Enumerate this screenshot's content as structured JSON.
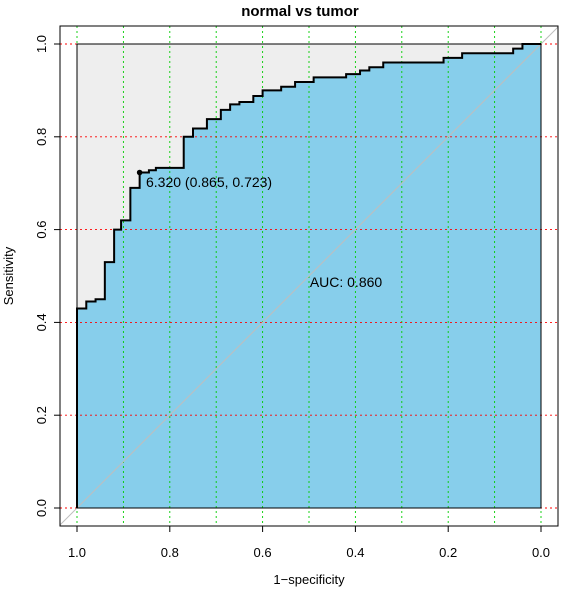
{
  "chart_data": {
    "type": "line",
    "title": "normal vs tumor",
    "xlabel": "1−specificity",
    "ylabel": "Sensitivity",
    "xlim": [
      1.0,
      0.0
    ],
    "ylim": [
      0.0,
      1.0
    ],
    "x_reversed": true,
    "xticks": [
      "1.0",
      "0.8",
      "0.6",
      "0.4",
      "0.2",
      "0.0"
    ],
    "yticks": [
      "0.0",
      "0.2",
      "0.4",
      "0.6",
      "0.8",
      "1.0"
    ],
    "grid": true,
    "grid_x_color": "#00cc00",
    "grid_y_color": "#ff0000",
    "auc_fill_color": "#87ceeb",
    "outer_fill_color": "#eeeeee",
    "diagonal_color": "#bebebe",
    "auc_label": "AUC: 0.860",
    "threshold_label": "6.320 (0.865, 0.723)",
    "threshold_point": {
      "specificity": 0.865,
      "sensitivity": 0.723
    },
    "series": [
      {
        "x": [
          1.0,
          1.0,
          0.98,
          0.98,
          0.96,
          0.96,
          0.94,
          0.94,
          0.92,
          0.92,
          0.905,
          0.905,
          0.885,
          0.885,
          0.865,
          0.865,
          0.845,
          0.845,
          0.83,
          0.83,
          0.77,
          0.77,
          0.75,
          0.75,
          0.72,
          0.72,
          0.69,
          0.69,
          0.67,
          0.67,
          0.65,
          0.65,
          0.62,
          0.62,
          0.6,
          0.6,
          0.56,
          0.56,
          0.53,
          0.53,
          0.49,
          0.49,
          0.42,
          0.42,
          0.39,
          0.39,
          0.37,
          0.37,
          0.34,
          0.34,
          0.21,
          0.21,
          0.17,
          0.17,
          0.06,
          0.06,
          0.04,
          0.04,
          0.0
        ],
        "y": [
          0.0,
          0.43,
          0.43,
          0.445,
          0.445,
          0.45,
          0.45,
          0.53,
          0.53,
          0.6,
          0.6,
          0.62,
          0.62,
          0.69,
          0.69,
          0.723,
          0.723,
          0.728,
          0.728,
          0.733,
          0.733,
          0.8,
          0.8,
          0.818,
          0.818,
          0.838,
          0.838,
          0.858,
          0.858,
          0.87,
          0.87,
          0.875,
          0.875,
          0.888,
          0.888,
          0.9,
          0.9,
          0.908,
          0.908,
          0.918,
          0.918,
          0.928,
          0.928,
          0.935,
          0.935,
          0.943,
          0.943,
          0.95,
          0.95,
          0.96,
          0.96,
          0.97,
          0.97,
          0.98,
          0.98,
          0.99,
          0.99,
          1.0,
          1.0
        ]
      }
    ]
  }
}
